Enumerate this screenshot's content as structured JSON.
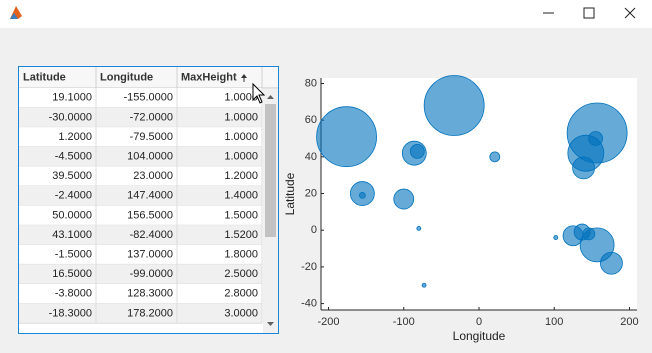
{
  "table": {
    "columns": [
      "Latitude",
      "Longitude",
      "MaxHeight"
    ],
    "rows": [
      [
        "19.1000",
        "-155.0000",
        "1.0000"
      ],
      [
        "-30.0000",
        "-72.0000",
        "1.0000"
      ],
      [
        "1.2000",
        "-79.5000",
        "1.0000"
      ],
      [
        "-4.5000",
        "104.0000",
        "1.0000"
      ],
      [
        "39.5000",
        "23.0000",
        "1.2000"
      ],
      [
        "-2.4000",
        "147.4000",
        "1.4000"
      ],
      [
        "50.0000",
        "156.5000",
        "1.5000"
      ],
      [
        "43.1000",
        "-82.4000",
        "1.5200"
      ],
      [
        "-1.5000",
        "137.0000",
        "1.8000"
      ],
      [
        "16.5000",
        "-99.0000",
        "2.5000"
      ],
      [
        "-3.8000",
        "128.3000",
        "2.8000"
      ],
      [
        "-18.3000",
        "178.2000",
        "3.0000"
      ]
    ]
  },
  "chart_data": {
    "type": "scatter",
    "xlabel": "Longitude",
    "ylabel": "Latitude",
    "x": [
      -176,
      -33,
      157,
      142,
      155,
      -86,
      -82,
      21,
      -155,
      -155,
      -100,
      139,
      125,
      137,
      146,
      157,
      176,
      102,
      -80,
      -73
    ],
    "y": [
      51,
      68,
      53,
      42,
      50,
      42,
      43,
      40,
      20,
      19,
      17,
      34,
      -3,
      -1,
      -2,
      -8,
      -18,
      -4,
      1,
      -30
    ],
    "sizes": [
      30,
      30,
      30,
      18,
      7,
      12,
      7,
      5,
      12,
      3,
      10,
      11,
      10,
      8,
      6,
      17,
      11,
      2,
      2,
      2
    ],
    "color": "#0072bd",
    "xlim": [
      -210,
      210
    ],
    "ylim": [
      -43.5,
      83
    ],
    "xticks": [
      -200,
      -100,
      0,
      100,
      200
    ],
    "yticks": [
      -40,
      -20,
      0,
      20,
      40,
      60,
      80
    ]
  }
}
